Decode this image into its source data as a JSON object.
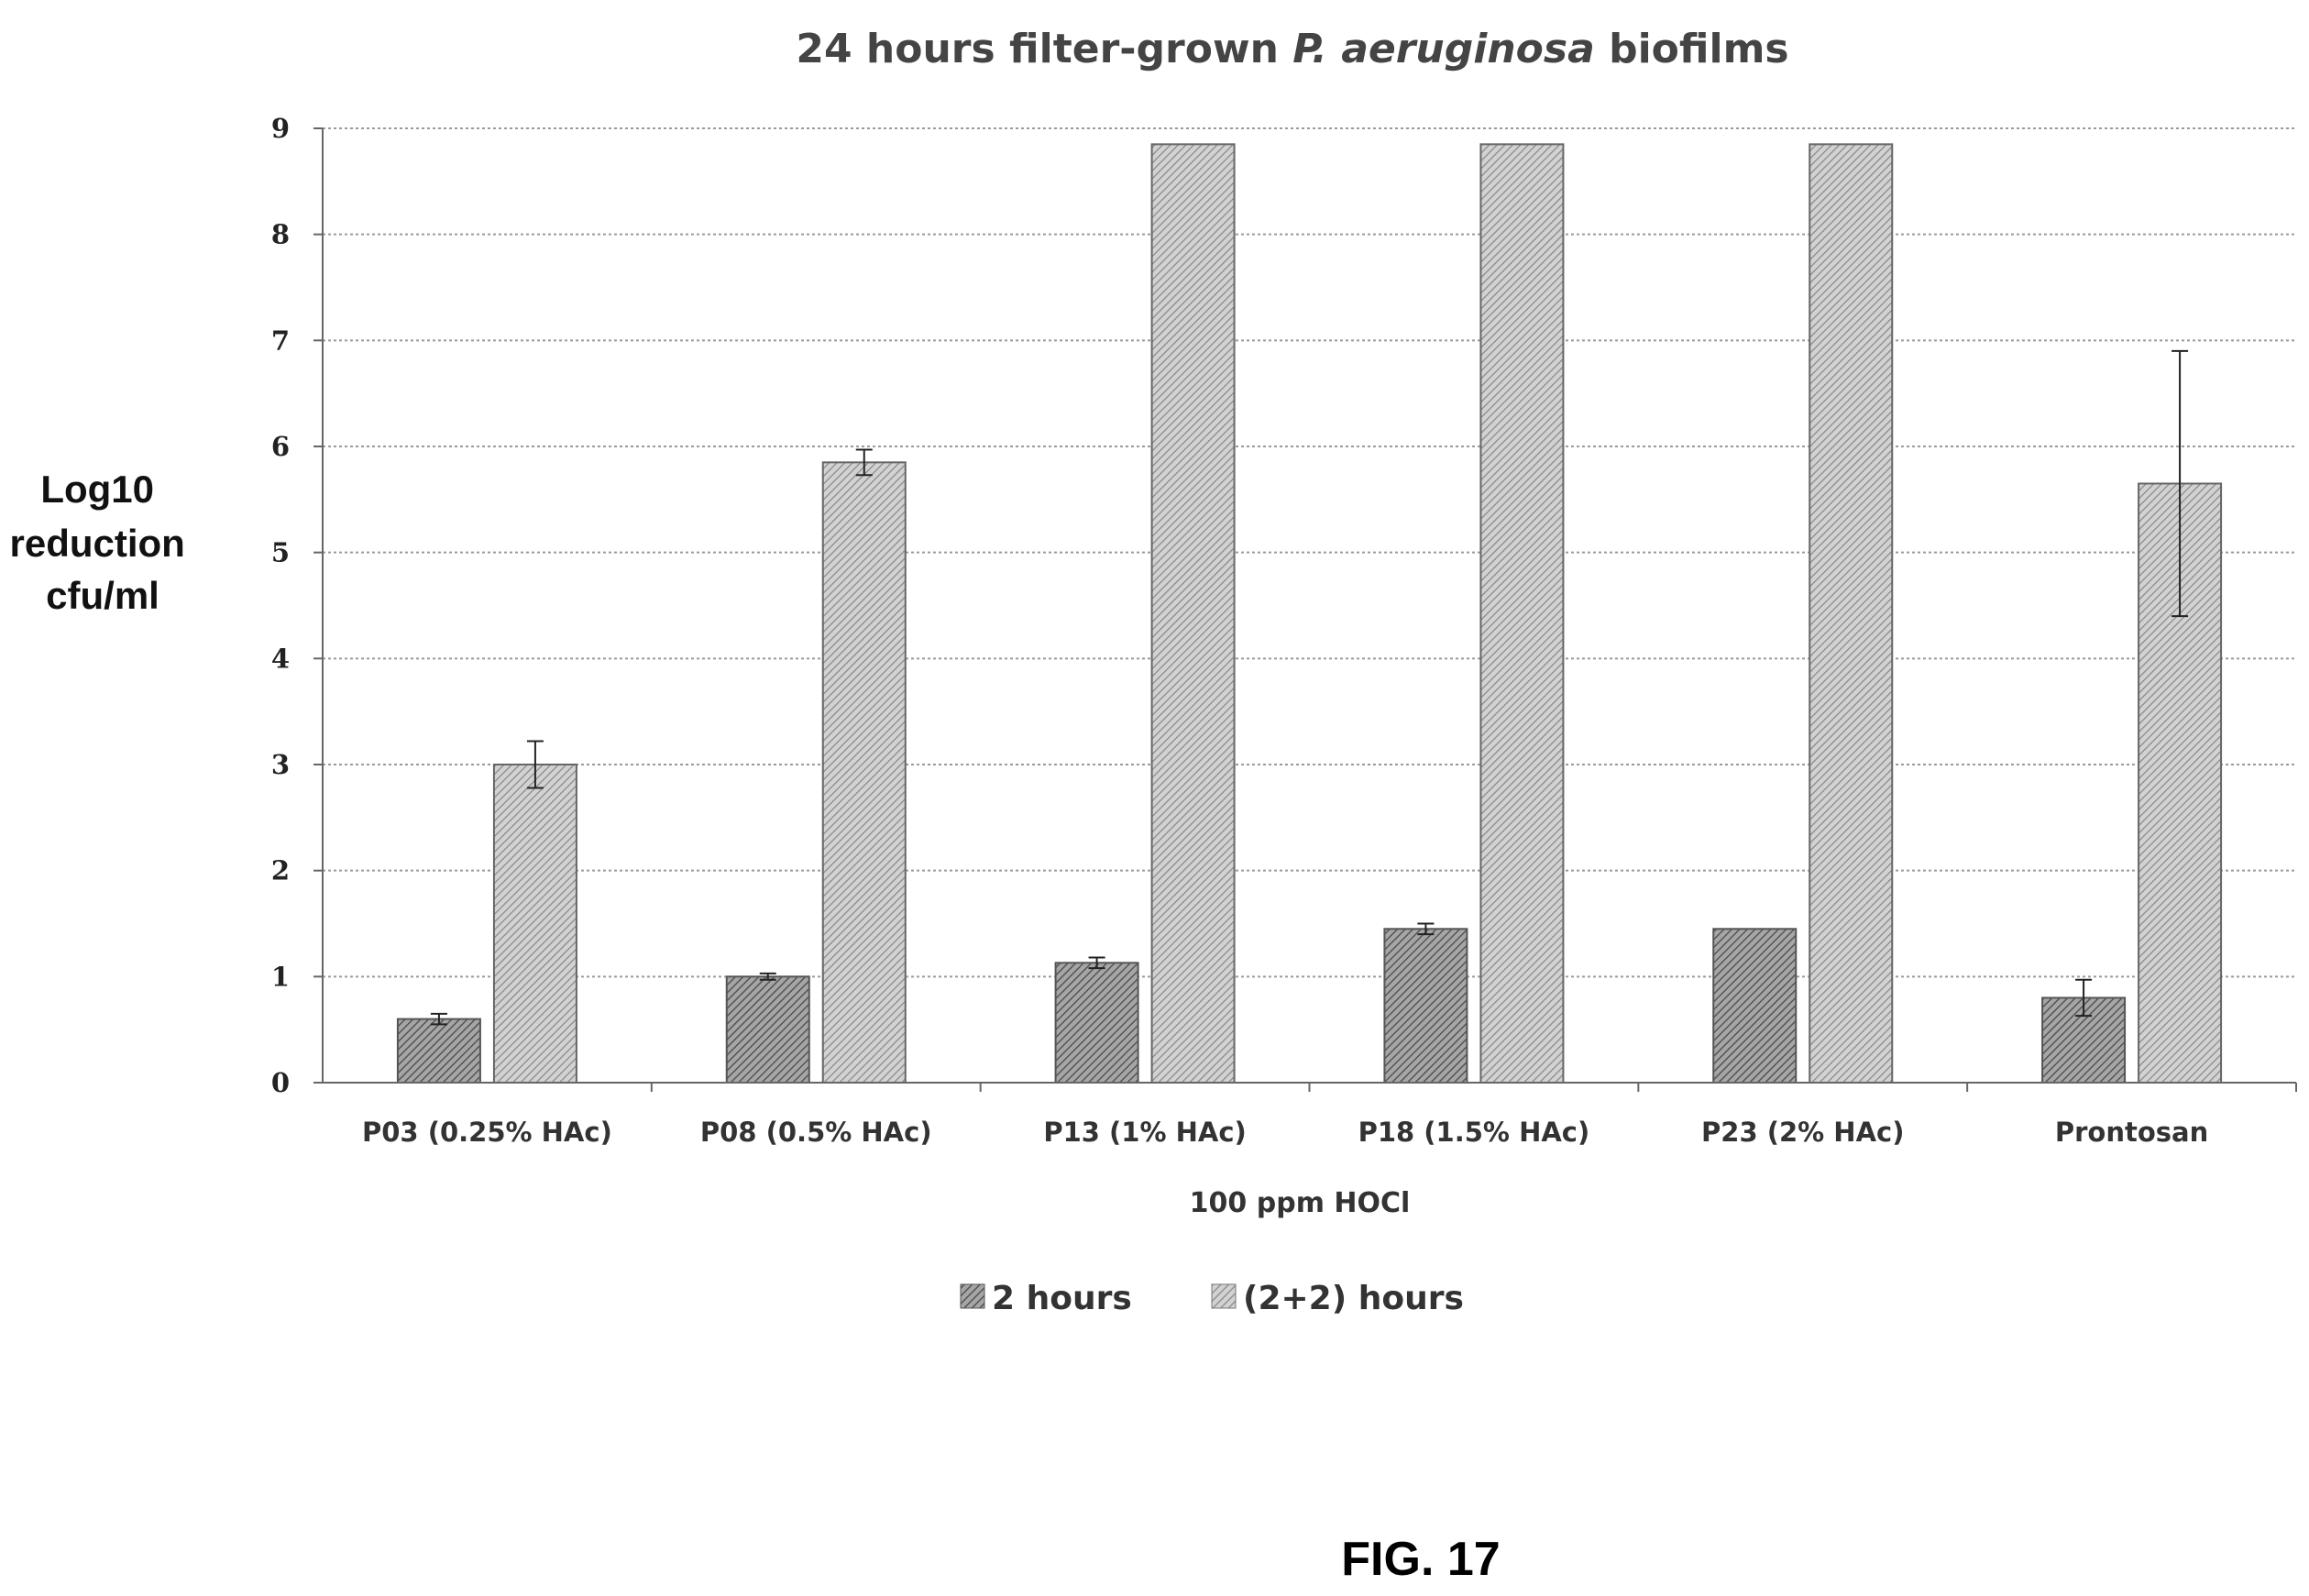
{
  "chart_data": {
    "type": "bar",
    "title": {
      "part1": "24 hours filter-grown ",
      "part2": "P. aeruginosa",
      "part3": " biofilms"
    },
    "ylabel_lines": [
      "Log10",
      "reduction",
      "cfu/ml"
    ],
    "xlabel": "100 ppm HOCl",
    "ylim": [
      0,
      9
    ],
    "yticks": [
      "0",
      "1",
      "2",
      "3",
      "4",
      "5",
      "6",
      "7",
      "8",
      "9"
    ],
    "grid": true,
    "legend_position": "bottom-center",
    "categories": [
      "P03 (0.25% HAc)",
      "P08 (0.5% HAc)",
      "P13 (1% HAc)",
      "P18 (1.5% HAc)",
      "P23 (2% HAc)",
      "Prontosan"
    ],
    "series": [
      {
        "name": "2 hours",
        "color": "#8c8c8c",
        "values": [
          0.6,
          1.0,
          1.13,
          1.45,
          1.45,
          0.8
        ],
        "errors": [
          0.05,
          0.03,
          0.05,
          0.05,
          0.0,
          0.17
        ]
      },
      {
        "name": "(2+2) hours",
        "color": "#b8b8b8",
        "values": [
          3.0,
          5.85,
          8.85,
          8.85,
          8.85,
          5.65
        ],
        "errors": [
          0.22,
          0.12,
          0.0,
          0.0,
          0.0,
          1.25
        ]
      }
    ]
  },
  "figure_label": "FIG. 17"
}
